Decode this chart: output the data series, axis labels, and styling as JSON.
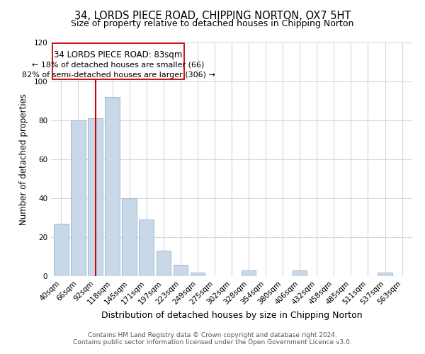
{
  "title": "34, LORDS PIECE ROAD, CHIPPING NORTON, OX7 5HT",
  "subtitle": "Size of property relative to detached houses in Chipping Norton",
  "xlabel": "Distribution of detached houses by size in Chipping Norton",
  "ylabel": "Number of detached properties",
  "bar_labels": [
    "40sqm",
    "66sqm",
    "92sqm",
    "118sqm",
    "145sqm",
    "171sqm",
    "197sqm",
    "223sqm",
    "249sqm",
    "275sqm",
    "302sqm",
    "328sqm",
    "354sqm",
    "380sqm",
    "406sqm",
    "432sqm",
    "458sqm",
    "485sqm",
    "511sqm",
    "537sqm",
    "563sqm"
  ],
  "bar_values": [
    27,
    80,
    81,
    92,
    40,
    29,
    13,
    6,
    2,
    0,
    0,
    3,
    0,
    0,
    3,
    0,
    0,
    0,
    0,
    2,
    0
  ],
  "bar_color": "#c8d8e8",
  "bar_edgecolor": "#a0b8cc",
  "vline_index": 2,
  "vline_color": "#cc0000",
  "ylim": [
    0,
    120
  ],
  "yticks": [
    0,
    20,
    40,
    60,
    80,
    100,
    120
  ],
  "annotation_title": "34 LORDS PIECE ROAD: 83sqm",
  "annotation_line1": "← 18% of detached houses are smaller (66)",
  "annotation_line2": "82% of semi-detached houses are larger (306) →",
  "annotation_box_color": "#ffffff",
  "annotation_box_edgecolor": "#cc0000",
  "footer1": "Contains HM Land Registry data © Crown copyright and database right 2024.",
  "footer2": "Contains public sector information licensed under the Open Government Licence v3.0.",
  "background_color": "#ffffff",
  "grid_color": "#d0d8e0",
  "title_fontsize": 10.5,
  "subtitle_fontsize": 9,
  "xlabel_fontsize": 9,
  "ylabel_fontsize": 8.5,
  "tick_fontsize": 7.5,
  "annotation_title_fontsize": 8.5,
  "annotation_body_fontsize": 8,
  "footer_fontsize": 6.5
}
